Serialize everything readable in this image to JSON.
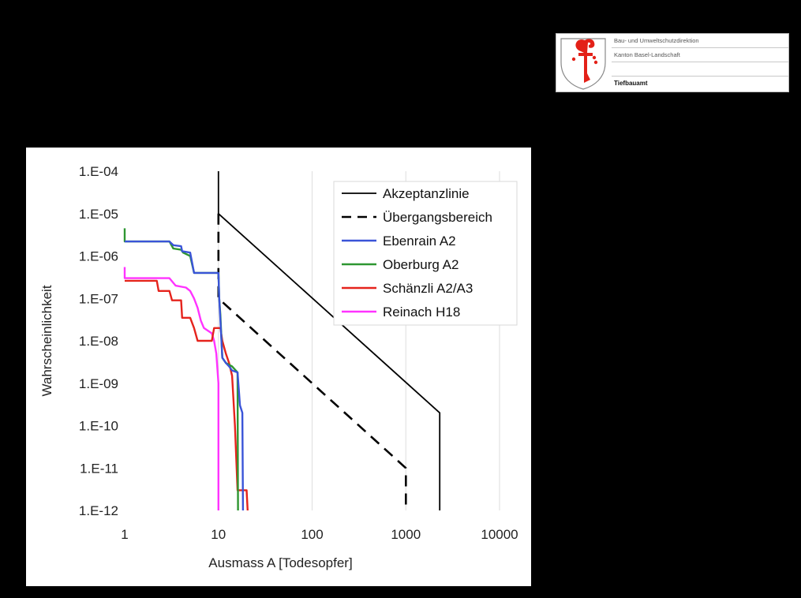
{
  "header": {
    "lines": [
      "Bau- und Umweltschutzdirektion",
      "Kanton Basel-Landschaft",
      "",
      "Tiefbauamt"
    ],
    "crest_color": "#e32118"
  },
  "chart_data": {
    "type": "line",
    "x_scale": "log",
    "y_scale": "log",
    "xlim": [
      1,
      10000
    ],
    "ylim": [
      1e-12,
      0.0001
    ],
    "xlabel": "Ausmass A [Todesopfer]",
    "ylabel": "Wahrscheinlichkeit",
    "x_ticks": [
      {
        "value": 1,
        "label": "1"
      },
      {
        "value": 10,
        "label": "10"
      },
      {
        "value": 100,
        "label": "100"
      },
      {
        "value": 1000,
        "label": "1000"
      },
      {
        "value": 10000,
        "label": "10000"
      }
    ],
    "y_ticks": [
      {
        "value": 0.0001,
        "label": "1.E-04"
      },
      {
        "value": 1e-05,
        "label": "1.E-05"
      },
      {
        "value": 1e-06,
        "label": "1.E-06"
      },
      {
        "value": 1e-07,
        "label": "1.E-07"
      },
      {
        "value": 1e-08,
        "label": "1.E-08"
      },
      {
        "value": 1e-09,
        "label": "1.E-09"
      },
      {
        "value": 1e-10,
        "label": "1.E-10"
      },
      {
        "value": 1e-11,
        "label": "1.E-11"
      },
      {
        "value": 1e-12,
        "label": "1.E-12"
      }
    ],
    "grid": {
      "vertical": true,
      "horizontal": false
    },
    "legend_position": "top-right",
    "series": [
      {
        "name": "Akzeptanzlinie",
        "color": "#000000",
        "dash": "solid",
        "points": [
          [
            10,
            0.0001
          ],
          [
            10,
            1e-05
          ],
          [
            2300,
            2e-10
          ],
          [
            2300,
            1e-12
          ]
        ]
      },
      {
        "name": "Übergangsbereich",
        "color": "#000000",
        "dash": "dashed",
        "points": [
          [
            10,
            1e-05
          ],
          [
            10,
            1e-07
          ],
          [
            1000,
            1e-11
          ],
          [
            1000,
            1e-12
          ]
        ]
      },
      {
        "name": "Ebenrain A2",
        "color": "#3a54d8",
        "dash": "solid",
        "points": [
          [
            1,
            2.2e-06
          ],
          [
            3,
            2.2e-06
          ],
          [
            3.3,
            1.8e-06
          ],
          [
            4,
            1.7e-06
          ],
          [
            4.1,
            1.3e-06
          ],
          [
            5,
            1.2e-06
          ],
          [
            5.5,
            4e-07
          ],
          [
            10,
            4e-07
          ],
          [
            10.2,
            1e-07
          ],
          [
            10.5,
            3e-08
          ],
          [
            11,
            4e-09
          ],
          [
            12,
            3e-09
          ],
          [
            13,
            2.5e-09
          ],
          [
            14,
            2e-09
          ],
          [
            16,
            1.8e-09
          ],
          [
            17,
            3e-10
          ],
          [
            18,
            2e-10
          ],
          [
            18.3,
            1e-12
          ]
        ]
      },
      {
        "name": "Oberburg A2",
        "color": "#2e9631",
        "dash": "solid",
        "points": [
          [
            1,
            4.5e-06
          ],
          [
            1,
            2.2e-06
          ],
          [
            3,
            2.2e-06
          ],
          [
            3.3,
            1.5e-06
          ],
          [
            4,
            1.4e-06
          ],
          [
            4.2,
            1.2e-06
          ],
          [
            5,
            1e-06
          ],
          [
            5.5,
            4e-07
          ],
          [
            10,
            4e-07
          ],
          [
            10.2,
            1e-07
          ],
          [
            10.5,
            4e-08
          ],
          [
            11,
            4e-09
          ],
          [
            12,
            3e-09
          ],
          [
            14,
            2.5e-09
          ],
          [
            16,
            1.8e-09
          ],
          [
            16.2,
            1e-12
          ]
        ]
      },
      {
        "name": "Schänzli A2/A3",
        "color": "#e5231c",
        "dash": "solid",
        "points": [
          [
            1,
            2.6e-07
          ],
          [
            2.2,
            2.6e-07
          ],
          [
            2.3,
            1.5e-07
          ],
          [
            3,
            1.5e-07
          ],
          [
            3.2,
            9e-08
          ],
          [
            4,
            9e-08
          ],
          [
            4.1,
            3.5e-08
          ],
          [
            5,
            3.5e-08
          ],
          [
            5.5,
            2e-08
          ],
          [
            6,
            1e-08
          ],
          [
            8.5,
            1e-08
          ],
          [
            9,
            2e-08
          ],
          [
            10.5,
            2e-08
          ],
          [
            11,
            1e-08
          ],
          [
            12,
            5e-09
          ],
          [
            13,
            3e-09
          ],
          [
            14,
            1.5e-09
          ],
          [
            15,
            1e-10
          ],
          [
            16,
            3e-12
          ],
          [
            20,
            3e-12
          ],
          [
            20.5,
            1e-12
          ]
        ]
      },
      {
        "name": "Reinach H18",
        "color": "#ff33ff",
        "dash": "solid",
        "points": [
          [
            1,
            5.5e-07
          ],
          [
            1,
            3e-07
          ],
          [
            3,
            3e-07
          ],
          [
            3.5,
            2e-07
          ],
          [
            4.5,
            1.8e-07
          ],
          [
            5,
            1.5e-07
          ],
          [
            5.5,
            1e-07
          ],
          [
            6,
            6e-08
          ],
          [
            6.5,
            3e-08
          ],
          [
            7,
            2e-08
          ],
          [
            8.5,
            1.5e-08
          ],
          [
            9,
            1e-08
          ],
          [
            9.5,
            5e-09
          ],
          [
            10,
            1e-09
          ],
          [
            10,
            1e-12
          ]
        ]
      }
    ]
  }
}
